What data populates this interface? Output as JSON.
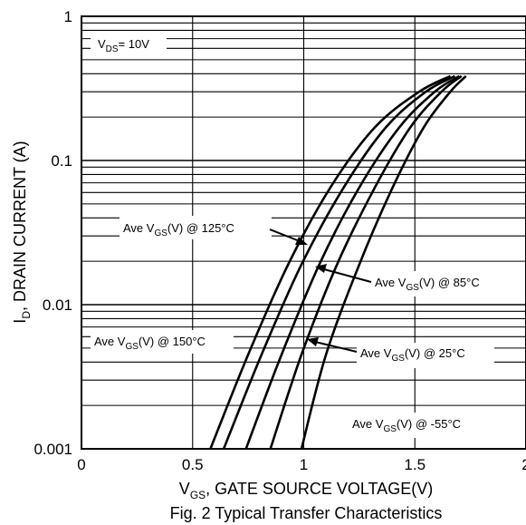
{
  "chart_data": {
    "type": "line",
    "title": "",
    "caption": "Fig. 2 Typical Transfer Characteristics",
    "xlabel": {
      "main": "V",
      "sub": "GS",
      "rest": ", GATE SOURCE VOLTAGE(V)"
    },
    "ylabel": {
      "main": "I",
      "sub": "D",
      "rest": ", DRAIN CURRENT (A)"
    },
    "xlim": [
      0,
      2
    ],
    "ylim": [
      0.001,
      1
    ],
    "yscale": "log",
    "grid": true,
    "xticks": [
      {
        "value": 0,
        "label": "0"
      },
      {
        "value": 0.5,
        "label": "0.5"
      },
      {
        "value": 1,
        "label": "1"
      },
      {
        "value": 1.5,
        "label": "1.5"
      },
      {
        "value": 2,
        "label": "2"
      }
    ],
    "yticks": [
      {
        "value": 0.001,
        "label": "0.001"
      },
      {
        "value": 0.01,
        "label": "0.01"
      },
      {
        "value": 0.1,
        "label": "0.1"
      },
      {
        "value": 1,
        "label": "1"
      }
    ],
    "condition": {
      "main": "V",
      "sub": "DS",
      "rest": "= 10V"
    },
    "series": [
      {
        "name": {
          "pre": "Ave V",
          "sub": "GS",
          "post": "(V) @ 150°C"
        },
        "points": [
          [
            0.58,
            0.001
          ],
          [
            0.75,
            0.0045
          ],
          [
            0.93,
            0.019
          ],
          [
            1.12,
            0.065
          ],
          [
            1.32,
            0.17
          ],
          [
            1.52,
            0.3
          ],
          [
            1.66,
            0.385
          ]
        ]
      },
      {
        "name": {
          "pre": "Ave V",
          "sub": "GS",
          "post": "(V) @ 125°C"
        },
        "points": [
          [
            0.64,
            0.001
          ],
          [
            0.81,
            0.0045
          ],
          [
            0.99,
            0.019
          ],
          [
            1.18,
            0.065
          ],
          [
            1.37,
            0.17
          ],
          [
            1.55,
            0.3
          ],
          [
            1.68,
            0.385
          ]
        ]
      },
      {
        "name": {
          "pre": "Ave V",
          "sub": "GS",
          "post": "(V) @ 85°C"
        },
        "points": [
          [
            0.74,
            0.001
          ],
          [
            0.9,
            0.0045
          ],
          [
            1.07,
            0.019
          ],
          [
            1.25,
            0.065
          ],
          [
            1.43,
            0.17
          ],
          [
            1.59,
            0.3
          ],
          [
            1.7,
            0.385
          ]
        ]
      },
      {
        "name": {
          "pre": "Ave V",
          "sub": "GS",
          "post": "(V) @ 25°C"
        },
        "points": [
          [
            0.85,
            0.001
          ],
          [
            0.99,
            0.0045
          ],
          [
            1.15,
            0.019
          ],
          [
            1.32,
            0.065
          ],
          [
            1.48,
            0.17
          ],
          [
            1.62,
            0.3
          ],
          [
            1.71,
            0.385
          ]
        ]
      },
      {
        "name": {
          "pre": "Ave V",
          "sub": "GS",
          "post": "(V) @ -55°C"
        },
        "points": [
          [
            0.99,
            0.001
          ],
          [
            1.1,
            0.0045
          ],
          [
            1.25,
            0.019
          ],
          [
            1.4,
            0.065
          ],
          [
            1.54,
            0.17
          ],
          [
            1.66,
            0.3
          ],
          [
            1.73,
            0.385
          ]
        ]
      }
    ]
  }
}
